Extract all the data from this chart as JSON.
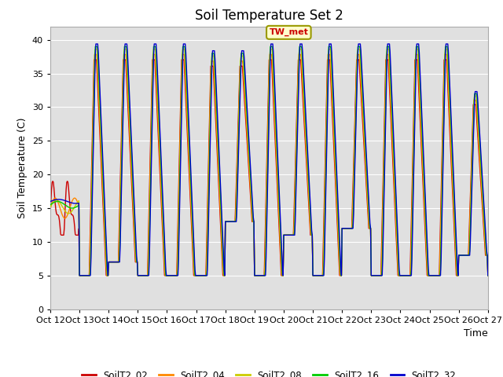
{
  "title": "Soil Temperature Set 2",
  "ylabel": "Soil Temperature (C)",
  "xlabel": "Time",
  "ylim": [
    0,
    42
  ],
  "yticks": [
    0,
    5,
    10,
    15,
    20,
    25,
    30,
    35,
    40
  ],
  "background_color": "#e0e0e0",
  "series_colors": {
    "SoilT2_02": "#cc0000",
    "SoilT2_04": "#ff8800",
    "SoilT2_08": "#cccc00",
    "SoilT2_16": "#00cc00",
    "SoilT2_32": "#0000cc"
  },
  "series_labels": [
    "SoilT2_02",
    "SoilT2_04",
    "SoilT2_08",
    "SoilT2_16",
    "SoilT2_32"
  ],
  "annotation_text": "TW_met",
  "annotation_color": "#cc0000",
  "annotation_bg": "#ffffcc",
  "x_tick_labels": [
    "Oct 12",
    "Oct 13",
    "Oct 14",
    "Oct 15",
    "Oct 16",
    "Oct 17",
    "Oct 18",
    "Oct 19",
    "Oct 20",
    "Oct 21",
    "Oct 22",
    "Oct 23",
    "Oct 24",
    "Oct 25",
    "Oct 26",
    "Oct 27"
  ],
  "grid_color": "#ffffff",
  "line_width": 1.0
}
